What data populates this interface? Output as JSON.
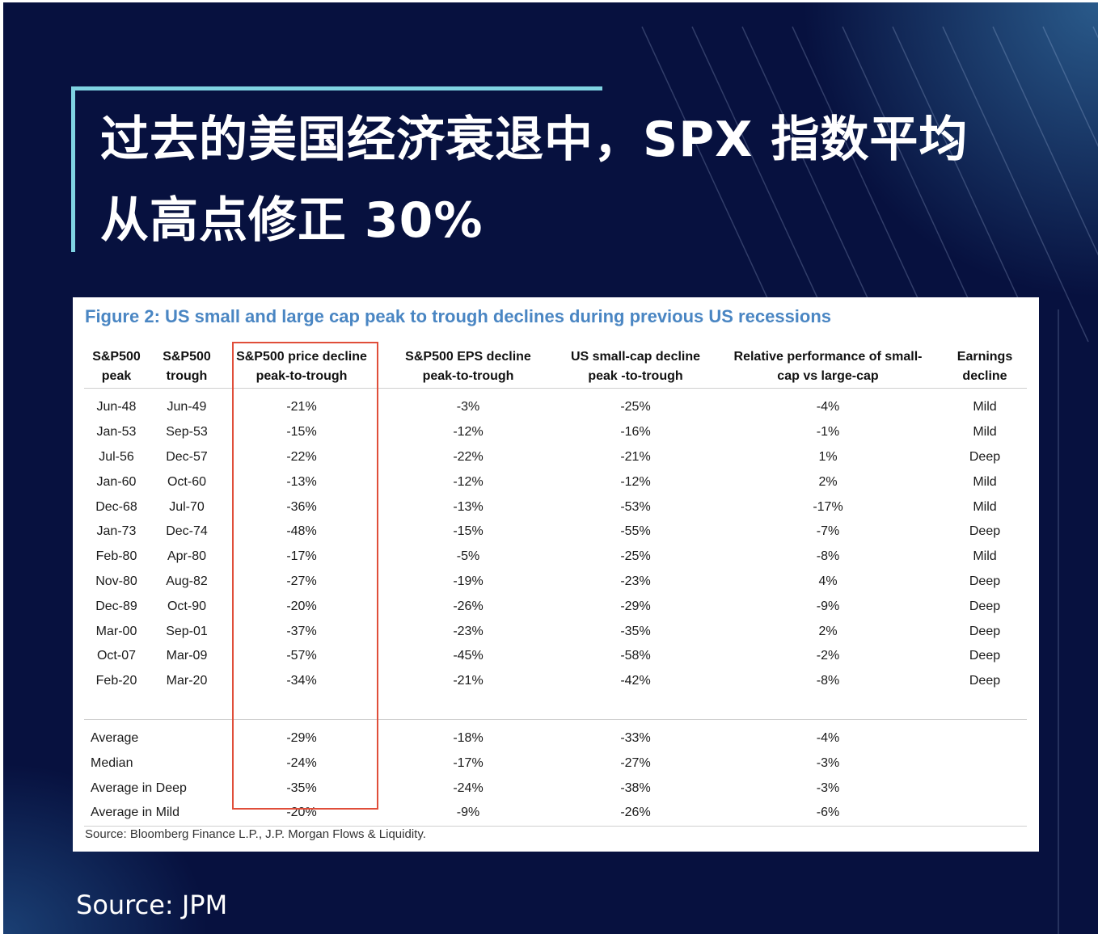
{
  "title": "过去的美国经济衰退中，SPX 指数平均从高点修正 30%",
  "figure": {
    "title": "Figure 2: US small and large cap peak to trough declines during previous US recessions",
    "columns": [
      {
        "line1": "S&P500",
        "line2": "peak"
      },
      {
        "line1": "S&P500",
        "line2": "trough"
      },
      {
        "line1": "S&P500 price decline",
        "line2": "peak-to-trough"
      },
      {
        "line1": "S&P500 EPS decline",
        "line2": "peak-to-trough"
      },
      {
        "line1": "US small-cap decline",
        "line2": "peak -to-trough"
      },
      {
        "line1": "Relative performance of small-",
        "line2": "cap vs large-cap"
      },
      {
        "line1": "Earnings",
        "line2": "decline"
      }
    ],
    "rows": [
      [
        "Jun-48",
        "Jun-49",
        "-21%",
        "-3%",
        "-25%",
        "-4%",
        "Mild"
      ],
      [
        "Jan-53",
        "Sep-53",
        "-15%",
        "-12%",
        "-16%",
        "-1%",
        "Mild"
      ],
      [
        "Jul-56",
        "Dec-57",
        "-22%",
        "-22%",
        "-21%",
        "1%",
        "Deep"
      ],
      [
        "Jan-60",
        "Oct-60",
        "-13%",
        "-12%",
        "-12%",
        "2%",
        "Mild"
      ],
      [
        "Dec-68",
        "Jul-70",
        "-36%",
        "-13%",
        "-53%",
        "-17%",
        "Mild"
      ],
      [
        "Jan-73",
        "Dec-74",
        "-48%",
        "-15%",
        "-55%",
        "-7%",
        "Deep"
      ],
      [
        "Feb-80",
        "Apr-80",
        "-17%",
        "-5%",
        "-25%",
        "-8%",
        "Mild"
      ],
      [
        "Nov-80",
        "Aug-82",
        "-27%",
        "-19%",
        "-23%",
        "4%",
        "Deep"
      ],
      [
        "Dec-89",
        "Oct-90",
        "-20%",
        "-26%",
        "-29%",
        "-9%",
        "Deep"
      ],
      [
        "Mar-00",
        "Sep-01",
        "-37%",
        "-23%",
        "-35%",
        "2%",
        "Deep"
      ],
      [
        "Oct-07",
        "Mar-09",
        "-57%",
        "-45%",
        "-58%",
        "-2%",
        "Deep"
      ],
      [
        "Feb-20",
        "Mar-20",
        "-34%",
        "-21%",
        "-42%",
        "-8%",
        "Deep"
      ]
    ],
    "summary": [
      {
        "label": "Average",
        "values": [
          "-29%",
          "-18%",
          "-33%",
          "-4%"
        ]
      },
      {
        "label": "Median",
        "values": [
          "-24%",
          "-17%",
          "-27%",
          "-3%"
        ]
      },
      {
        "label": "Average in Deep",
        "values": [
          "-35%",
          "-24%",
          "-38%",
          "-3%"
        ]
      },
      {
        "label": "Average in Mild",
        "values": [
          "-20%",
          "-9%",
          "-26%",
          "-6%"
        ]
      }
    ],
    "source": "Source: Bloomberg Finance L.P., J.P. Morgan Flows & Liquidity."
  },
  "footer": "Source: JPM",
  "colors": {
    "background": "#07113f",
    "accent": "#7fd3e2",
    "figure_title": "#4a86c3",
    "highlight_box": "#e04e3a"
  }
}
